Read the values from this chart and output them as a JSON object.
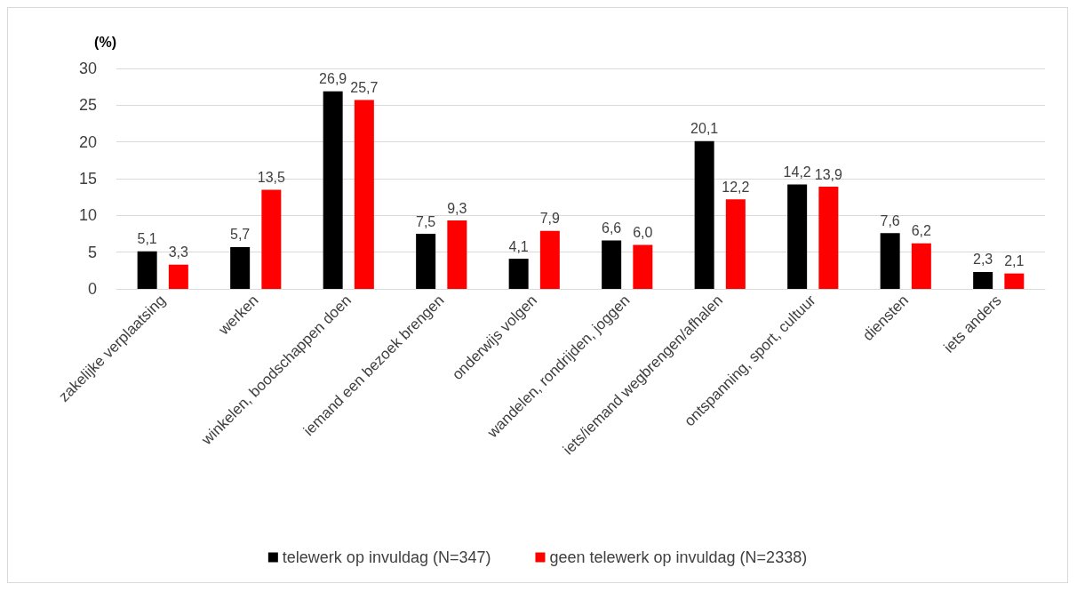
{
  "chart_data": {
    "type": "bar",
    "ylabel": "(%)",
    "categories": [
      "zakelijke verplaatsing",
      "werken",
      "winkelen, boodschappen doen",
      "iemand een bezoek brengen",
      "onderwijs volgen",
      "wandelen, rondrijden, joggen",
      "iets/iemand wegbrengen/afhalen",
      "ontspanning, sport, cultuur",
      "diensten",
      "iets anders"
    ],
    "series": [
      {
        "name": "telewerk op invuldag (N=347)",
        "color": "#000000",
        "values": [
          5.1,
          5.7,
          26.9,
          7.5,
          4.1,
          6.6,
          20.1,
          14.2,
          7.6,
          2.3
        ],
        "value_labels": [
          "5,1",
          "5,7",
          "26,9",
          "7,5",
          "4,1",
          "6,6",
          "20,1",
          "14,2",
          "7,6",
          "2,3"
        ]
      },
      {
        "name": "geen telewerk op invuldag (N=2338)",
        "color": "#ff0000",
        "values": [
          3.3,
          13.5,
          25.7,
          9.3,
          7.9,
          6.0,
          12.2,
          13.9,
          6.2,
          2.1
        ],
        "value_labels": [
          "3,3",
          "13,5",
          "25,7",
          "9,3",
          "7,9",
          "6,0",
          "12,2",
          "13,9",
          "6,2",
          "2,1"
        ]
      }
    ],
    "ylim": [
      0,
      30
    ],
    "yticks": [
      0,
      5,
      10,
      15,
      20,
      25,
      30
    ],
    "grid": "y",
    "legend": "bottom"
  }
}
